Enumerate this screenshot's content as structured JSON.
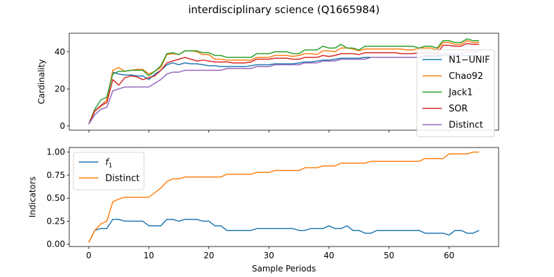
{
  "figure": {
    "title": "interdisciplinary science (Q1665984)"
  },
  "chart_data": [
    {
      "type": "line",
      "xlabel": "",
      "ylabel": "Cardinality",
      "xlim": [
        -3.25,
        68.25
      ],
      "ylim": [
        -2.3,
        50.0
      ],
      "yticks": [
        0,
        20,
        40
      ],
      "legend": "right",
      "grid": false,
      "series": [
        {
          "name": "N1−UNIF",
          "color": "#1f77b4",
          "x": [
            0,
            1,
            2,
            3,
            4,
            5,
            6,
            7,
            8,
            9,
            10,
            11,
            12,
            13,
            14,
            15,
            16,
            17,
            18,
            19,
            20,
            21,
            22,
            23,
            24,
            25,
            26,
            27,
            28,
            29,
            30,
            31,
            32,
            33,
            34,
            35,
            36,
            37,
            38,
            39,
            40,
            41,
            42,
            43,
            44,
            45,
            46,
            47,
            48,
            49,
            50,
            51,
            52,
            53,
            54,
            55,
            56,
            57,
            58,
            59,
            60,
            61,
            62,
            63,
            64,
            65
          ],
          "y": [
            1,
            8,
            11,
            14,
            29,
            28,
            27.5,
            27.5,
            27,
            27,
            25,
            28,
            30,
            33,
            34,
            33,
            34,
            33.5,
            33.5,
            33,
            32.5,
            32.5,
            32,
            32,
            32,
            32,
            32,
            32.5,
            33,
            33,
            33,
            33.5,
            33.5,
            33.5,
            33.5,
            34,
            34.5,
            34.5,
            35,
            35.5,
            35.5,
            36,
            36.5,
            36.5,
            36.5,
            36.5,
            37,
            37,
            37,
            37,
            37,
            37,
            37,
            37,
            37,
            37,
            37.5,
            37.5,
            37.5,
            38,
            38,
            38,
            38,
            38,
            38,
            38
          ]
        },
        {
          "name": "Chao92",
          "color": "#ff7f0e",
          "x": [
            0,
            1,
            2,
            3,
            4,
            5,
            6,
            7,
            8,
            9,
            10,
            11,
            12,
            13,
            14,
            15,
            16,
            17,
            18,
            19,
            20,
            21,
            22,
            23,
            24,
            25,
            26,
            27,
            28,
            29,
            30,
            31,
            32,
            33,
            34,
            35,
            36,
            37,
            38,
            39,
            40,
            41,
            42,
            43,
            44,
            45,
            46,
            47,
            48,
            49,
            50,
            51,
            52,
            53,
            54,
            55,
            56,
            57,
            58,
            59,
            60,
            61,
            62,
            63,
            64,
            65
          ],
          "y": [
            1,
            8,
            10.5,
            14,
            30,
            31.5,
            29.5,
            30,
            30.5,
            30.5,
            28,
            29.5,
            31.5,
            38.5,
            39,
            38.5,
            40.5,
            40.5,
            40,
            38.5,
            38.5,
            36,
            36,
            35.5,
            35.5,
            35.5,
            35.5,
            35.5,
            37,
            37,
            37,
            38,
            38,
            38,
            37.5,
            38,
            39,
            39,
            38.5,
            40.5,
            40.5,
            40,
            42,
            42,
            41.5,
            40.5,
            41.5,
            41.5,
            41.5,
            41.5,
            41.5,
            41.5,
            41.5,
            41,
            41,
            42,
            42,
            42,
            41,
            45,
            45,
            44,
            44,
            46,
            45,
            45
          ]
        },
        {
          "name": "Jack1",
          "color": "#2ca02c",
          "x": [
            0,
            1,
            2,
            3,
            4,
            5,
            6,
            7,
            8,
            9,
            10,
            11,
            12,
            13,
            14,
            15,
            16,
            17,
            18,
            19,
            20,
            21,
            22,
            23,
            24,
            25,
            26,
            27,
            28,
            29,
            30,
            31,
            32,
            33,
            34,
            35,
            36,
            37,
            38,
            39,
            40,
            41,
            42,
            43,
            44,
            45,
            46,
            47,
            48,
            49,
            50,
            51,
            52,
            53,
            54,
            55,
            56,
            57,
            58,
            59,
            60,
            61,
            62,
            63,
            64,
            65
          ],
          "y": [
            1,
            9,
            14,
            15.5,
            28,
            29.5,
            29.5,
            30,
            30,
            30,
            27,
            29.5,
            32.5,
            39,
            39.5,
            38.5,
            40.5,
            40.5,
            40.5,
            39.5,
            39.5,
            38,
            38,
            37,
            37,
            37,
            37,
            37,
            39,
            39,
            39,
            40,
            40,
            40,
            39,
            39,
            41,
            41,
            41,
            43,
            42,
            42,
            44,
            42,
            42,
            41,
            43,
            43,
            43,
            43,
            43,
            43,
            43,
            43,
            43,
            42,
            43,
            43,
            42,
            46,
            46,
            45,
            45,
            47,
            46,
            46
          ]
        },
        {
          "name": "SOR",
          "color": "#d62728",
          "x": [
            0,
            1,
            2,
            3,
            4,
            5,
            6,
            7,
            8,
            9,
            10,
            11,
            12,
            13,
            14,
            15,
            16,
            17,
            18,
            19,
            20,
            21,
            22,
            23,
            24,
            25,
            26,
            27,
            28,
            29,
            30,
            31,
            32,
            33,
            34,
            35,
            36,
            37,
            38,
            39,
            40,
            41,
            42,
            43,
            44,
            45,
            46,
            47,
            48,
            49,
            50,
            51,
            52,
            53,
            54,
            55,
            56,
            57,
            58,
            59,
            60,
            61,
            62,
            63,
            64,
            65
          ],
          "y": [
            1,
            8,
            11,
            12.5,
            25,
            22,
            26,
            27,
            26.5,
            25,
            26,
            27,
            30,
            34,
            35,
            36,
            37,
            36,
            35,
            35.5,
            35,
            34.5,
            34.5,
            34.5,
            34,
            34,
            34,
            34.5,
            36,
            36,
            36,
            36.5,
            36.5,
            36.5,
            36,
            36,
            37,
            37,
            37,
            38,
            37.5,
            38,
            39,
            39,
            39,
            38.5,
            39.5,
            39.5,
            39.5,
            39.5,
            39.5,
            39.5,
            39,
            39,
            39,
            39.5,
            39.5,
            39.5,
            39,
            43.5,
            43.5,
            43,
            43,
            44.5,
            44,
            44
          ]
        },
        {
          "name": "Distinct",
          "color": "#9467bd",
          "x": [
            0,
            1,
            2,
            3,
            4,
            5,
            6,
            7,
            8,
            9,
            10,
            11,
            12,
            13,
            14,
            15,
            16,
            17,
            18,
            19,
            20,
            21,
            22,
            23,
            24,
            25,
            26,
            27,
            28,
            29,
            30,
            31,
            32,
            33,
            34,
            35,
            36,
            37,
            38,
            39,
            40,
            41,
            42,
            43,
            44,
            45,
            46,
            47,
            48,
            49,
            50,
            51,
            52,
            53,
            54,
            55,
            56,
            57,
            58,
            59,
            60,
            61,
            62,
            63,
            64,
            65
          ],
          "y": [
            1,
            6,
            9,
            10,
            19,
            20,
            21,
            21,
            21,
            21,
            21,
            23,
            25,
            28,
            29,
            29,
            30,
            30,
            30,
            30,
            30,
            30,
            30,
            31,
            31,
            31,
            31,
            31,
            32,
            32,
            32,
            33,
            33,
            33,
            33,
            33,
            34,
            34,
            34,
            35,
            35,
            35,
            36,
            36,
            36,
            36,
            36,
            37,
            37,
            37,
            37,
            37,
            37,
            37,
            37,
            37,
            38,
            38,
            38,
            39,
            39,
            39,
            39,
            40,
            40,
            40
          ]
        }
      ]
    },
    {
      "type": "line",
      "xlabel": "Sample Periods",
      "ylabel": "Indicators",
      "xlim": [
        -3.25,
        68.25
      ],
      "ylim": [
        -0.025,
        1.05
      ],
      "xticks": [
        0,
        10,
        20,
        30,
        40,
        50,
        60
      ],
      "yticks": [
        0.0,
        0.25,
        0.5,
        0.75,
        1.0
      ],
      "ytick_labels": [
        "0.00",
        "0.25",
        "0.50",
        "0.75",
        "1.00"
      ],
      "legend": "top-left",
      "grid": false,
      "series": [
        {
          "name": "f",
          "name_subscript": "1",
          "color": "#1f77b4",
          "x": [
            0,
            1,
            2,
            3,
            4,
            5,
            6,
            7,
            8,
            9,
            10,
            11,
            12,
            13,
            14,
            15,
            16,
            17,
            18,
            19,
            20,
            21,
            22,
            23,
            24,
            25,
            26,
            27,
            28,
            29,
            30,
            31,
            32,
            33,
            34,
            35,
            36,
            37,
            38,
            39,
            40,
            41,
            42,
            43,
            44,
            45,
            46,
            47,
            48,
            49,
            50,
            51,
            52,
            53,
            54,
            55,
            56,
            57,
            58,
            59,
            60,
            61,
            62,
            63,
            64,
            65
          ],
          "y": [
            0.02,
            0.15,
            0.17,
            0.17,
            0.27,
            0.27,
            0.25,
            0.25,
            0.25,
            0.25,
            0.2,
            0.2,
            0.2,
            0.27,
            0.27,
            0.25,
            0.27,
            0.27,
            0.27,
            0.25,
            0.25,
            0.2,
            0.2,
            0.15,
            0.15,
            0.15,
            0.15,
            0.15,
            0.17,
            0.17,
            0.17,
            0.17,
            0.17,
            0.17,
            0.17,
            0.15,
            0.15,
            0.17,
            0.17,
            0.17,
            0.2,
            0.17,
            0.17,
            0.2,
            0.15,
            0.15,
            0.12,
            0.12,
            0.15,
            0.15,
            0.15,
            0.15,
            0.15,
            0.15,
            0.15,
            0.15,
            0.12,
            0.12,
            0.12,
            0.12,
            0.1,
            0.15,
            0.15,
            0.12,
            0.12,
            0.15
          ]
        },
        {
          "name": "Distinct",
          "color": "#ff7f0e",
          "x": [
            0,
            1,
            2,
            3,
            4,
            5,
            6,
            7,
            8,
            9,
            10,
            11,
            12,
            13,
            14,
            15,
            16,
            17,
            18,
            19,
            20,
            21,
            22,
            23,
            24,
            25,
            26,
            27,
            28,
            29,
            30,
            31,
            32,
            33,
            34,
            35,
            36,
            37,
            38,
            39,
            40,
            41,
            42,
            43,
            44,
            45,
            46,
            47,
            48,
            49,
            50,
            51,
            52,
            53,
            54,
            55,
            56,
            57,
            58,
            59,
            60,
            61,
            62,
            63,
            64,
            65
          ],
          "y": [
            0.02,
            0.15,
            0.22,
            0.25,
            0.46,
            0.49,
            0.51,
            0.51,
            0.51,
            0.51,
            0.51,
            0.56,
            0.61,
            0.68,
            0.71,
            0.71,
            0.73,
            0.73,
            0.73,
            0.73,
            0.73,
            0.73,
            0.73,
            0.76,
            0.76,
            0.76,
            0.76,
            0.76,
            0.78,
            0.78,
            0.78,
            0.8,
            0.8,
            0.8,
            0.8,
            0.8,
            0.83,
            0.83,
            0.83,
            0.85,
            0.85,
            0.85,
            0.88,
            0.88,
            0.88,
            0.88,
            0.88,
            0.9,
            0.9,
            0.9,
            0.9,
            0.9,
            0.9,
            0.9,
            0.9,
            0.9,
            0.93,
            0.93,
            0.93,
            0.93,
            0.98,
            0.98,
            0.98,
            0.98,
            1.0,
            1.0
          ]
        }
      ]
    }
  ]
}
